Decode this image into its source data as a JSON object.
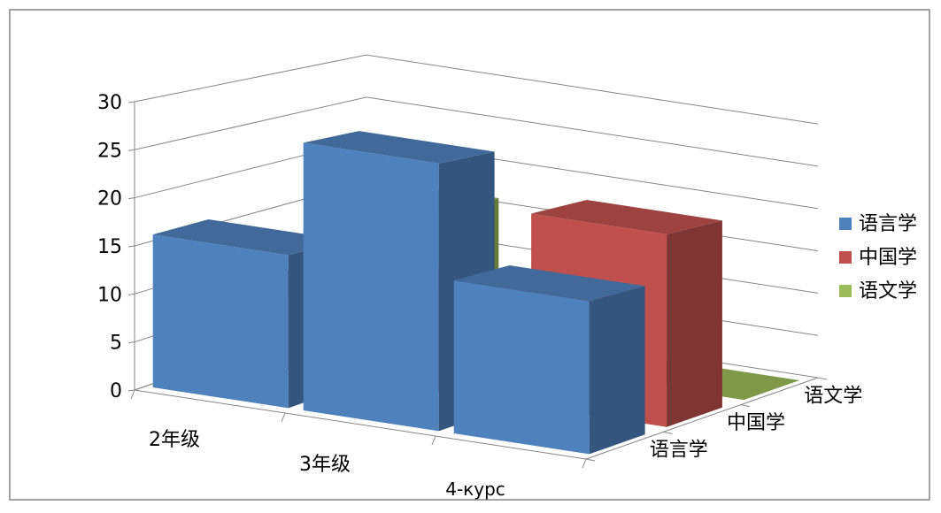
{
  "colors": {
    "series_1": "#4f81bd",
    "series_2": "#c0504d",
    "series_3": "#9bbb59",
    "gridline": "#868686",
    "border": "#868686",
    "background": "#ffffff"
  },
  "chart_data": {
    "type": "bar",
    "variant": "3d-column",
    "title": "",
    "xlabel": "",
    "ylabel": "",
    "ylim": [
      0,
      30
    ],
    "yticks": [
      "0",
      "5",
      "10",
      "15",
      "20",
      "25",
      "30"
    ],
    "grid": true,
    "legend_position": "right",
    "categories": [
      "2年级",
      "3年级",
      "4-курс"
    ],
    "depth_labels": [
      "语言学",
      "中国学",
      "语文学"
    ],
    "series": [
      {
        "name": "语言学",
        "values": [
          16,
          28,
          16
        ]
      },
      {
        "name": "中国学",
        "values": [
          8,
          11,
          21
        ]
      },
      {
        "name": "语文学",
        "values": [
          16,
          0,
          0
        ]
      }
    ],
    "legend": [
      "语言学",
      "中国学",
      "语文学"
    ]
  }
}
